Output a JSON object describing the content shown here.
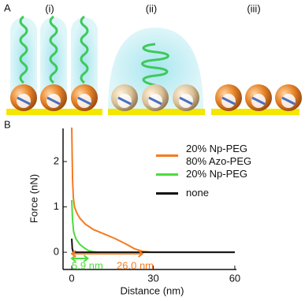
{
  "panel_a": {
    "label": "A",
    "sublabels": [
      "(i)",
      "(ii)",
      "(iii)"
    ]
  },
  "chart_data": {
    "type": "line",
    "panel_label": "B",
    "x_label": "Distance (nm)",
    "y_label": "Force (nN)",
    "xlim": [
      -3.2,
      60.6
    ],
    "ylim": [
      -0.38,
      2.73
    ],
    "xticks": [
      0,
      30,
      60
    ],
    "yticks": [
      0,
      1,
      2
    ],
    "series": [
      {
        "name": "20% Np-PEG 80% Azo-PEG",
        "color": "#f47b20",
        "x": [
          0,
          0.3,
          0.6,
          1,
          2,
          3,
          5,
          8,
          12,
          16,
          20,
          23,
          26,
          30,
          40,
          50,
          60
        ],
        "values": [
          2.75,
          1.6,
          1.2,
          1.0,
          0.85,
          0.75,
          0.62,
          0.5,
          0.4,
          0.3,
          0.18,
          0.08,
          0.02,
          0,
          0,
          0,
          0
        ]
      },
      {
        "name": "20% Np-PEG",
        "color": "#4cdc3c",
        "x": [
          0,
          0.3,
          0.7,
          1.5,
          3,
          4.5,
          6,
          8,
          10,
          20,
          30,
          40,
          50,
          60
        ],
        "values": [
          1.15,
          0.7,
          0.45,
          0.3,
          0.17,
          0.1,
          0.04,
          0.01,
          0,
          0,
          0,
          0,
          0,
          0
        ]
      },
      {
        "name": "none",
        "color": "#111111",
        "x": [
          0,
          0.2,
          0.5,
          2,
          10,
          20,
          30,
          40,
          50,
          60
        ],
        "values": [
          0.3,
          0.08,
          0.01,
          0,
          0,
          0,
          0,
          0,
          0,
          0
        ]
      }
    ],
    "annotations": [
      {
        "value": 5.9,
        "label": "5.9 nm",
        "color": "#4cdc3c"
      },
      {
        "value": 26.0,
        "label": "26.0 nm",
        "color": "#f47b20"
      }
    ]
  }
}
